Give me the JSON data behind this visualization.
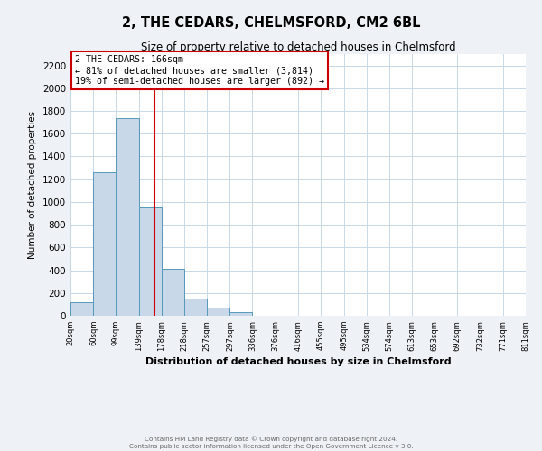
{
  "title": "2, THE CEDARS, CHELMSFORD, CM2 6BL",
  "subtitle": "Size of property relative to detached houses in Chelmsford",
  "xlabel": "Distribution of detached houses by size in Chelmsford",
  "ylabel": "Number of detached properties",
  "footer_line1": "Contains HM Land Registry data © Crown copyright and database right 2024.",
  "footer_line2": "Contains public sector information licensed under the Open Government Licence v 3.0.",
  "bin_labels": [
    "20sqm",
    "60sqm",
    "99sqm",
    "139sqm",
    "178sqm",
    "218sqm",
    "257sqm",
    "297sqm",
    "336sqm",
    "376sqm",
    "416sqm",
    "455sqm",
    "495sqm",
    "534sqm",
    "574sqm",
    "613sqm",
    "653sqm",
    "692sqm",
    "732sqm",
    "771sqm",
    "811sqm"
  ],
  "bar_values": [
    120,
    1265,
    1735,
    950,
    415,
    150,
    75,
    35,
    0,
    0,
    0,
    0,
    0,
    0,
    0,
    0,
    0,
    0,
    0,
    0
  ],
  "bin_edges": [
    20,
    60,
    99,
    139,
    178,
    218,
    257,
    297,
    336,
    376,
    416,
    455,
    495,
    534,
    574,
    613,
    653,
    692,
    732,
    771,
    811
  ],
  "bar_color": "#c8d8e8",
  "bar_edge_color": "#5599bb",
  "vline_x": 166,
  "vline_color": "#cc0000",
  "annotation_title": "2 THE CEDARS: 166sqm",
  "annotation_line1": "← 81% of detached houses are smaller (3,814)",
  "annotation_line2": "19% of semi-detached houses are larger (892) →",
  "annotation_box_edge_color": "#cc0000",
  "ylim": [
    0,
    2300
  ],
  "yticks": [
    0,
    200,
    400,
    600,
    800,
    1000,
    1200,
    1400,
    1600,
    1800,
    2000,
    2200
  ],
  "bg_color": "#eef2f6",
  "plot_bg_color": "#ffffff",
  "grid_color": "#c8d8e8"
}
